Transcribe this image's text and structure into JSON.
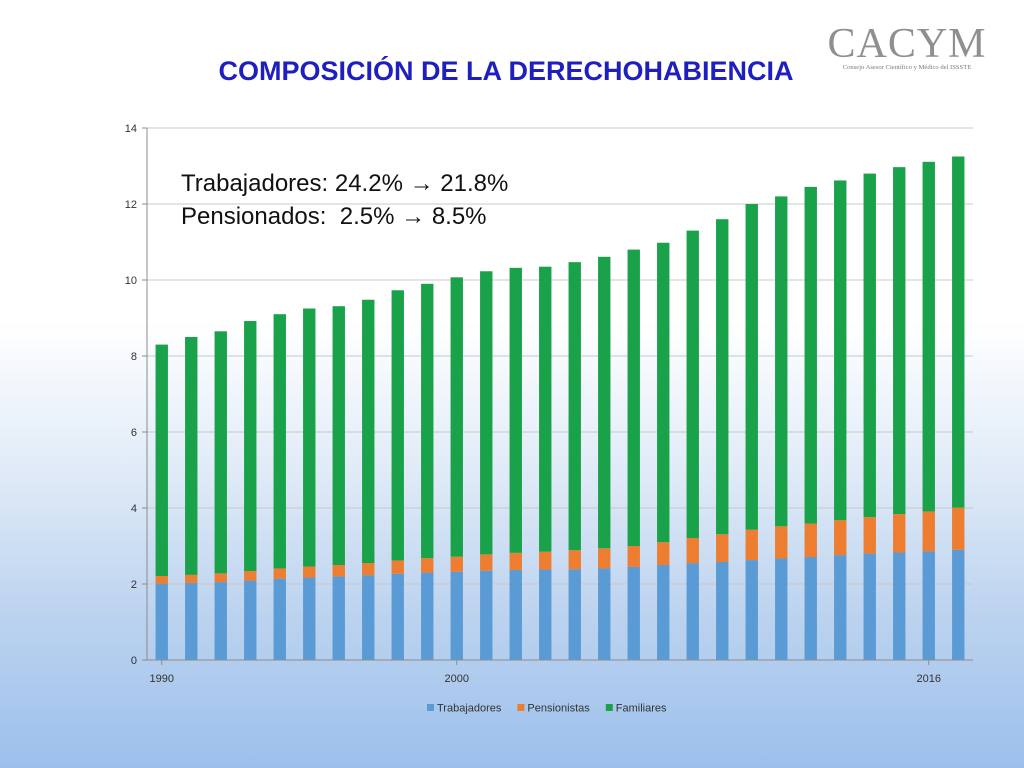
{
  "slide": {
    "title": "COMPOSICIÓN DE LA DERECHOHABIENCIA"
  },
  "logo": {
    "main": "CACYM",
    "subtitle": "Consejo Asesor Científico y Médico del ISSSTE"
  },
  "chart_data": {
    "type": "bar",
    "stacked": true,
    "x": [
      1990,
      1991,
      1992,
      1993,
      1994,
      1995,
      1996,
      1997,
      1998,
      1999,
      2000,
      2001,
      2002,
      2003,
      2004,
      2005,
      2006,
      2007,
      2008,
      2009,
      2010,
      2011,
      2012,
      2013,
      2014,
      2015,
      2016,
      2017
    ],
    "x_tick_labels": [
      "1990",
      "2000",
      "2016"
    ],
    "ylim": [
      0,
      14
    ],
    "y_ticks": [
      0,
      2,
      4,
      6,
      8,
      10,
      12,
      14
    ],
    "grid": true,
    "legend_position": "bottom",
    "series": [
      {
        "name": "Trabajadores",
        "color": "#5b9bd5",
        "values": [
          2.01,
          2.03,
          2.05,
          2.09,
          2.14,
          2.17,
          2.2,
          2.23,
          2.27,
          2.3,
          2.32,
          2.35,
          2.37,
          2.38,
          2.39,
          2.41,
          2.45,
          2.5,
          2.55,
          2.58,
          2.63,
          2.67,
          2.71,
          2.76,
          2.8,
          2.83,
          2.86,
          2.9
        ]
      },
      {
        "name": "Pensionistas",
        "color": "#ed7d31",
        "values": [
          0.2,
          0.21,
          0.23,
          0.25,
          0.27,
          0.29,
          0.3,
          0.32,
          0.35,
          0.38,
          0.4,
          0.43,
          0.45,
          0.47,
          0.5,
          0.53,
          0.55,
          0.6,
          0.66,
          0.73,
          0.8,
          0.85,
          0.88,
          0.92,
          0.96,
          1.01,
          1.05,
          1.11
        ]
      },
      {
        "name": "Familiares",
        "color": "#1aa24b",
        "values": [
          6.09,
          6.26,
          6.37,
          6.58,
          6.69,
          6.79,
          6.81,
          6.93,
          7.11,
          7.22,
          7.35,
          7.45,
          7.5,
          7.5,
          7.58,
          7.67,
          7.8,
          7.88,
          8.09,
          8.29,
          8.57,
          8.68,
          8.86,
          8.94,
          9.04,
          9.13,
          9.2,
          9.24
        ]
      }
    ],
    "annotations": [
      "Trabajadores: 24.2% → 21.8%",
      "Pensionados:  2.5% → 8.5%"
    ]
  }
}
